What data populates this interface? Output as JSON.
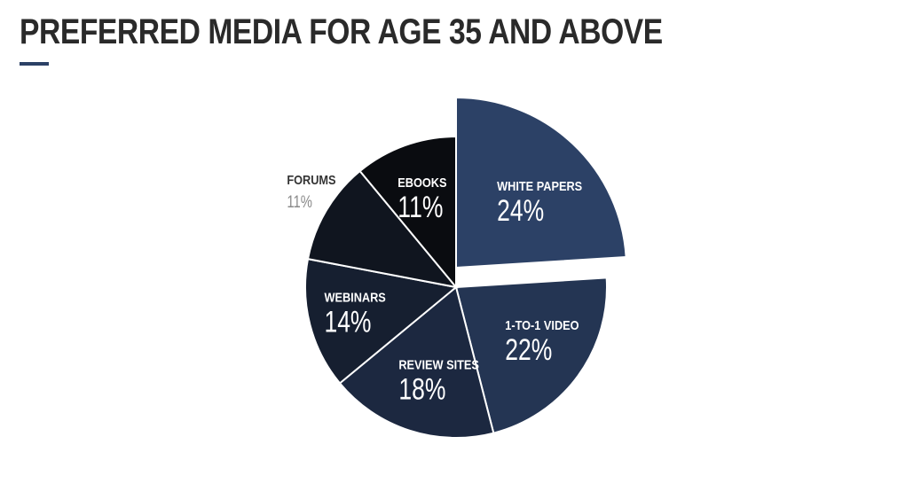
{
  "page": {
    "title": "PREFERRED MEDIA FOR AGE 35 AND ABOVE"
  },
  "colors": {
    "title_rule": "#2c4166",
    "label_light": "#ffffff",
    "label_dark_name": "#333333",
    "label_dark_value": "#8a8a8a"
  },
  "chart_data": {
    "type": "pie",
    "title": "PREFERRED MEDIA FOR AGE 35 AND ABOVE",
    "slices": [
      {
        "label": "WHITE PAPERS",
        "value": 24,
        "value_label": "24%",
        "color": "#2c4166",
        "exploded": true,
        "label_outside": false
      },
      {
        "label": "1-TO-1 VIDEO",
        "value": 22,
        "value_label": "22%",
        "color": "#243553",
        "exploded": false,
        "label_outside": false
      },
      {
        "label": "REVIEW SITES",
        "value": 18,
        "value_label": "18%",
        "color": "#1c2840",
        "exploded": false,
        "label_outside": false
      },
      {
        "label": "WEBINARS",
        "value": 14,
        "value_label": "14%",
        "color": "#161f30",
        "exploded": false,
        "label_outside": false
      },
      {
        "label": "FORUMS",
        "value": 11,
        "value_label": "11%",
        "color": "#10151f",
        "exploded": false,
        "label_outside": true
      },
      {
        "label": "EBOOKS",
        "value": 11,
        "value_label": "11%",
        "color": "#0a0c10",
        "exploded": false,
        "label_outside": false
      }
    ]
  }
}
